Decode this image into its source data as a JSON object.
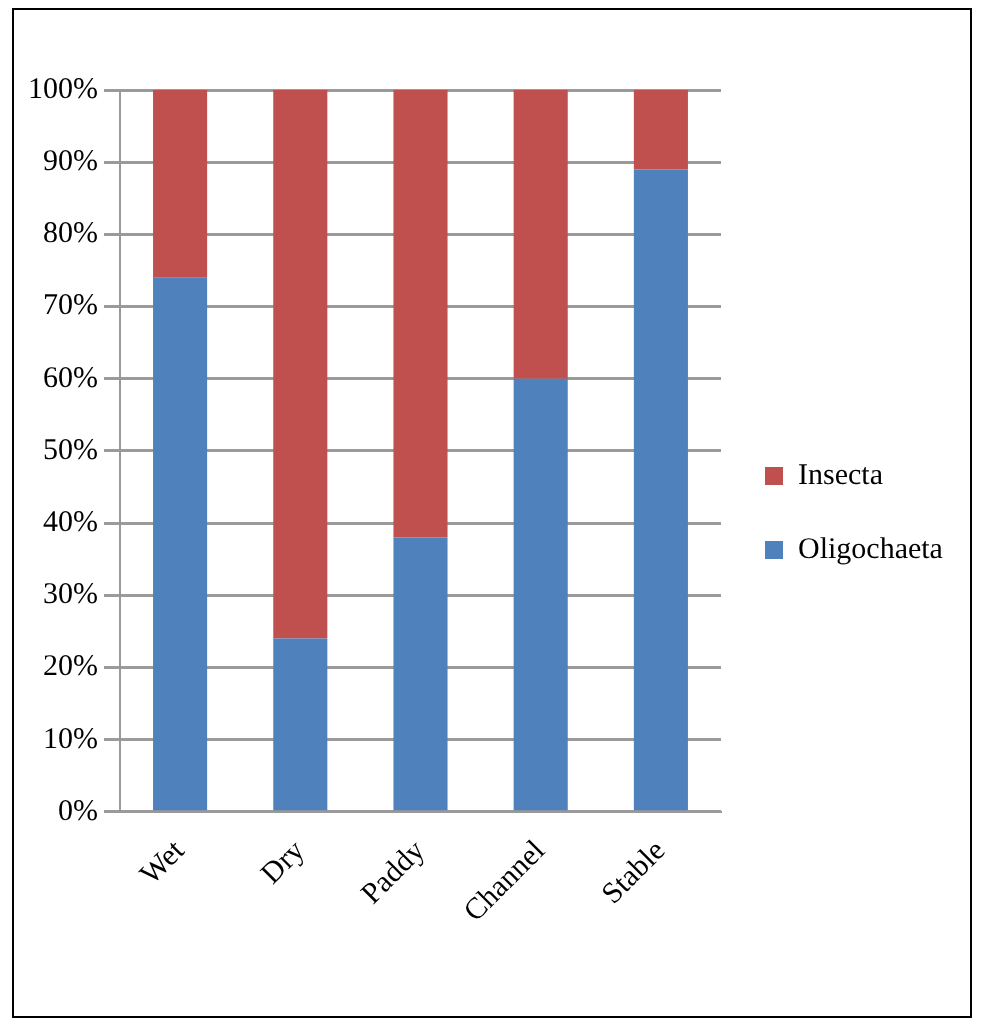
{
  "chart_data": {
    "type": "bar",
    "stacked": true,
    "categories": [
      "Wet",
      "Dry",
      "Paddy",
      "Channel",
      "Stable"
    ],
    "series": [
      {
        "name": "Oligochaeta",
        "color": "#4f81bd",
        "values": [
          74,
          24,
          38,
          60,
          89
        ]
      },
      {
        "name": "Insecta",
        "color": "#c0504d",
        "values": [
          26,
          76,
          62,
          40,
          11
        ]
      }
    ],
    "ylim": [
      0,
      100
    ],
    "yticks": [
      {
        "value": 0,
        "label": "0%"
      },
      {
        "value": 10,
        "label": "10%"
      },
      {
        "value": 20,
        "label": "20%"
      },
      {
        "value": 30,
        "label": "30%"
      },
      {
        "value": 40,
        "label": "40%"
      },
      {
        "value": 50,
        "label": "50%"
      },
      {
        "value": 60,
        "label": "60%"
      },
      {
        "value": 70,
        "label": "70%"
      },
      {
        "value": 80,
        "label": "80%"
      },
      {
        "value": 90,
        "label": "90%"
      },
      {
        "value": 100,
        "label": "100%"
      }
    ],
    "grid": "y",
    "legend": "right"
  }
}
